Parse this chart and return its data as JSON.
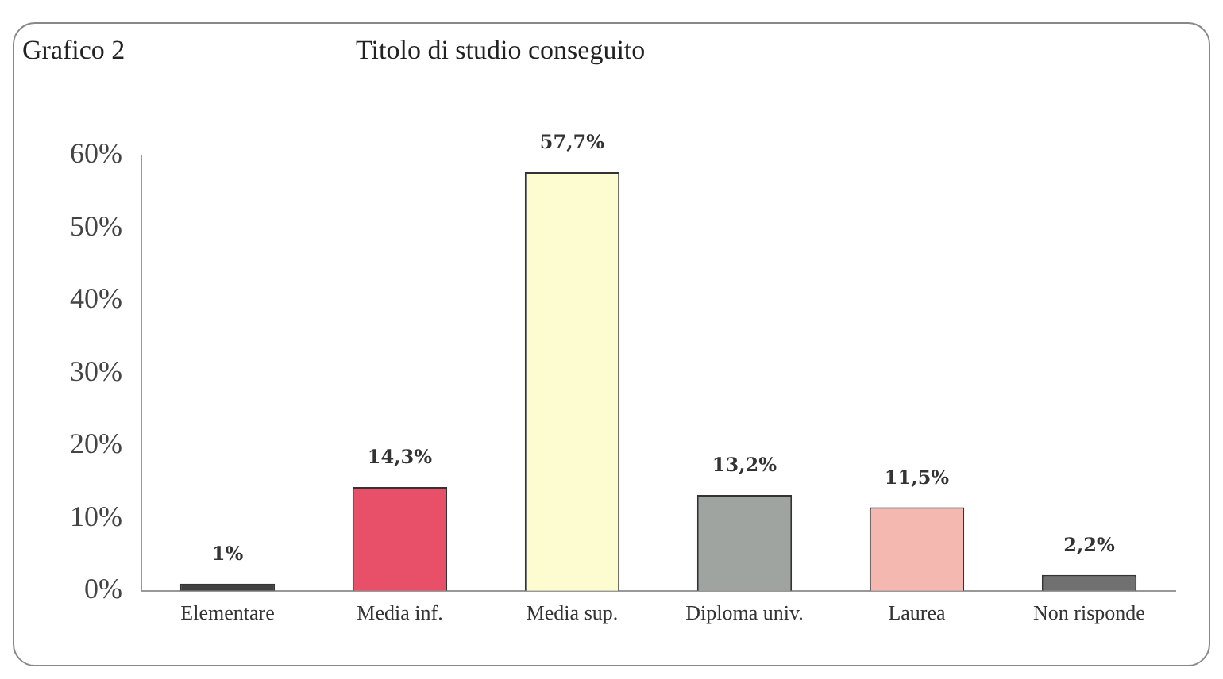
{
  "chart_data": {
    "type": "bar",
    "title": "Titolo di studio conseguito",
    "annotations": [
      "Grafico 2"
    ],
    "categories": [
      "Elementare",
      "Media inf.",
      "Media sup.",
      "Diploma univ.",
      "Laurea",
      "Non risponde"
    ],
    "values": [
      1,
      14.3,
      57.7,
      13.2,
      11.5,
      2.2
    ],
    "colors": [
      "#404040",
      "#e8506a",
      "#fdfbd0",
      "#a0a4a0",
      "#f4b8b0",
      "#707070"
    ],
    "value_labels": [
      "1%",
      "14,3%",
      "57,7%",
      "13,2%",
      "11,5%",
      "2,2%"
    ],
    "ylim": [
      0,
      60
    ],
    "yticks": [
      {
        "value": 0,
        "label": "0%"
      },
      {
        "value": 10,
        "label": "10%"
      },
      {
        "value": 20,
        "label": "20%"
      },
      {
        "value": 30,
        "label": "30%"
      },
      {
        "value": 40,
        "label": "40%"
      },
      {
        "value": 50,
        "label": "50%"
      },
      {
        "value": 60,
        "label": "60%"
      }
    ],
    "grid": false,
    "legend": false
  }
}
